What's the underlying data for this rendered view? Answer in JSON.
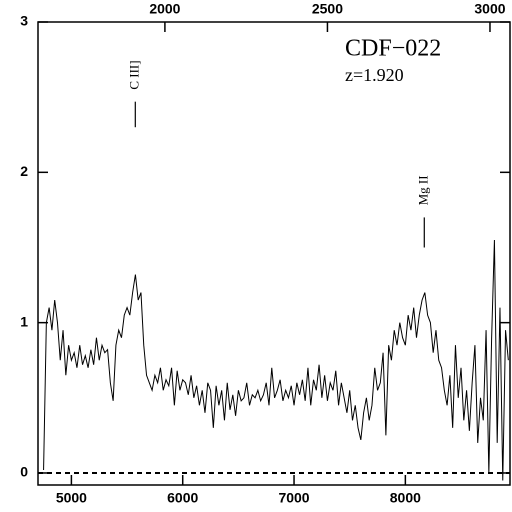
{
  "chart_data": {
    "type": "line",
    "title": "CDF−022",
    "subtitle": "z=1.920",
    "x": [
      4750,
      4775,
      4800,
      4825,
      4850,
      4875,
      4900,
      4925,
      4950,
      4975,
      5000,
      5025,
      5050,
      5075,
      5100,
      5125,
      5150,
      5175,
      5200,
      5225,
      5250,
      5275,
      5300,
      5325,
      5350,
      5375,
      5400,
      5425,
      5450,
      5475,
      5500,
      5525,
      5550,
      5575,
      5600,
      5625,
      5650,
      5675,
      5700,
      5725,
      5750,
      5775,
      5800,
      5825,
      5850,
      5875,
      5900,
      5925,
      5950,
      5975,
      6000,
      6025,
      6050,
      6075,
      6100,
      6125,
      6150,
      6175,
      6200,
      6225,
      6250,
      6275,
      6300,
      6325,
      6350,
      6375,
      6400,
      6425,
      6450,
      6475,
      6500,
      6525,
      6550,
      6575,
      6600,
      6625,
      6650,
      6675,
      6700,
      6725,
      6750,
      6775,
      6800,
      6825,
      6850,
      6875,
      6900,
      6925,
      6950,
      6975,
      7000,
      7025,
      7050,
      7075,
      7100,
      7125,
      7150,
      7175,
      7200,
      7225,
      7250,
      7275,
      7300,
      7325,
      7350,
      7375,
      7400,
      7425,
      7450,
      7475,
      7500,
      7525,
      7550,
      7575,
      7600,
      7625,
      7650,
      7675,
      7700,
      7725,
      7750,
      7775,
      7800,
      7825,
      7850,
      7875,
      7900,
      7925,
      7950,
      7975,
      8000,
      8025,
      8050,
      8075,
      8100,
      8125,
      8150,
      8175,
      8200,
      8225,
      8250,
      8275,
      8300,
      8325,
      8350,
      8375,
      8400,
      8425,
      8450,
      8475,
      8500,
      8525,
      8550,
      8575,
      8600,
      8625,
      8650,
      8675,
      8700,
      8725,
      8750,
      8775,
      8800,
      8825,
      8850,
      8875,
      8900,
      8925
    ],
    "values": [
      0.02,
      1.0,
      1.1,
      0.95,
      1.15,
      1.0,
      0.75,
      0.95,
      0.65,
      0.85,
      0.75,
      0.8,
      0.7,
      0.85,
      0.72,
      0.78,
      0.7,
      0.82,
      0.72,
      0.9,
      0.75,
      0.85,
      0.8,
      0.82,
      0.6,
      0.48,
      0.85,
      0.95,
      0.9,
      1.05,
      1.1,
      1.05,
      1.2,
      1.32,
      1.15,
      1.2,
      0.85,
      0.65,
      0.6,
      0.55,
      0.65,
      0.6,
      0.7,
      0.55,
      0.62,
      0.58,
      0.7,
      0.45,
      0.68,
      0.55,
      0.62,
      0.6,
      0.52,
      0.65,
      0.5,
      0.58,
      0.45,
      0.55,
      0.4,
      0.6,
      0.55,
      0.3,
      0.58,
      0.45,
      0.55,
      0.35,
      0.6,
      0.42,
      0.52,
      0.38,
      0.55,
      0.48,
      0.5,
      0.6,
      0.45,
      0.52,
      0.5,
      0.55,
      0.48,
      0.52,
      0.6,
      0.45,
      0.7,
      0.5,
      0.55,
      0.62,
      0.48,
      0.55,
      0.5,
      0.58,
      0.45,
      0.6,
      0.52,
      0.62,
      0.48,
      0.7,
      0.45,
      0.62,
      0.55,
      0.72,
      0.5,
      0.65,
      0.48,
      0.6,
      0.55,
      0.68,
      0.45,
      0.6,
      0.5,
      0.4,
      0.55,
      0.35,
      0.45,
      0.3,
      0.22,
      0.4,
      0.5,
      0.35,
      0.45,
      0.7,
      0.55,
      0.6,
      0.8,
      0.25,
      0.85,
      0.75,
      0.95,
      0.85,
      1.0,
      0.9,
      0.85,
      1.05,
      0.95,
      1.1,
      0.9,
      1.05,
      1.15,
      1.2,
      1.05,
      1.0,
      0.8,
      0.95,
      0.75,
      0.7,
      0.55,
      0.45,
      0.65,
      0.3,
      0.85,
      0.5,
      0.7,
      0.35,
      0.55,
      0.28,
      0.6,
      0.85,
      0.2,
      0.5,
      0.35,
      0.95,
      0.0,
      0.9,
      1.55,
      0.2,
      1.1,
      -0.05,
      0.95,
      0.75
    ],
    "color": "#000000",
    "xlim": [
      4700,
      8940
    ],
    "xticks": [
      5000,
      6000,
      7000,
      8000
    ],
    "x2lim": [
      1609.6,
      3061.6
    ],
    "x2ticks": [
      2000,
      2500,
      3000
    ],
    "ylim": [
      -0.08,
      3
    ],
    "yticks": [
      0,
      1,
      2,
      3
    ],
    "hline": 0,
    "annotations": [
      {
        "text": "C III]",
        "x": 5574,
        "y": [
          2.3,
          2.47
        ]
      },
      {
        "text": "Mg II",
        "x": 8170,
        "y": [
          1.5,
          1.7
        ]
      }
    ]
  }
}
